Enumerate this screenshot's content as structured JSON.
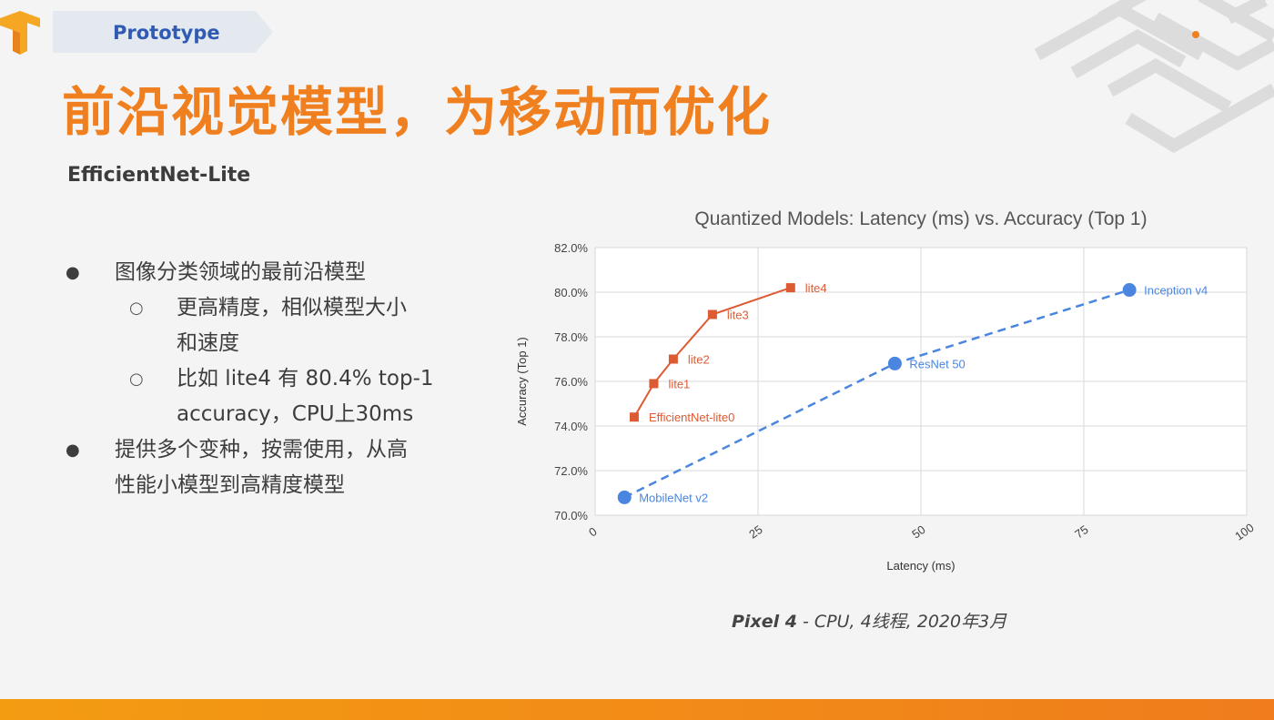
{
  "header": {
    "tag": "Prototype",
    "title": "前沿视觉模型，为移动而优化",
    "subtitle": "EfficientNet-Lite"
  },
  "bullets": {
    "b1": "图像分类领域的最前沿模型",
    "b1_sub1_line1": "更高精度，相似模型大小",
    "b1_sub1_line2": "和速度",
    "b1_sub2_line1": "比如 lite4 有 80.4% top-1",
    "b1_sub2_line2": "accuracy，CPU上30ms",
    "b2_line1": "提供多个变种，按需使用，从高",
    "b2_line2": "性能小模型到高精度模型"
  },
  "caption": {
    "device": "Pixel 4",
    "detail": " - CPU, 4线程, 2020年3月"
  },
  "colors": {
    "title": "#f0801f",
    "lite_series": "#dd5b33",
    "baseline_series": "#4a86e0"
  },
  "chart_data": {
    "type": "scatter",
    "title": "Quantized Models: Latency (ms) vs. Accuracy (Top 1)",
    "xlabel": "Latency (ms)",
    "ylabel": "Accuracy (Top 1)",
    "xlim": [
      0,
      100
    ],
    "ylim": [
      70.0,
      82.0
    ],
    "xticks": [
      "0",
      "25",
      "50",
      "75",
      "100"
    ],
    "yticks": [
      "70.0%",
      "72.0%",
      "74.0%",
      "76.0%",
      "78.0%",
      "80.0%",
      "82.0%"
    ],
    "grid": true,
    "series": [
      {
        "style": "square-markers-solid-line",
        "color": "#dd5b33",
        "points": [
          {
            "label": "EfficientNet-lite0",
            "x": 6,
            "y": 74.4
          },
          {
            "label": "lite1",
            "x": 9,
            "y": 75.9
          },
          {
            "label": "lite2",
            "x": 12,
            "y": 77.0
          },
          {
            "label": "lite3",
            "x": 18,
            "y": 79.0
          },
          {
            "label": "lite4",
            "x": 30,
            "y": 80.2
          }
        ]
      },
      {
        "style": "circle-markers-dashed-line",
        "color": "#4a86e0",
        "points": [
          {
            "label": "MobileNet v2",
            "x": 4.5,
            "y": 70.8
          },
          {
            "label": "ResNet 50",
            "x": 46,
            "y": 76.8
          },
          {
            "label": "Inception v4",
            "x": 82,
            "y": 80.1
          }
        ]
      }
    ]
  }
}
